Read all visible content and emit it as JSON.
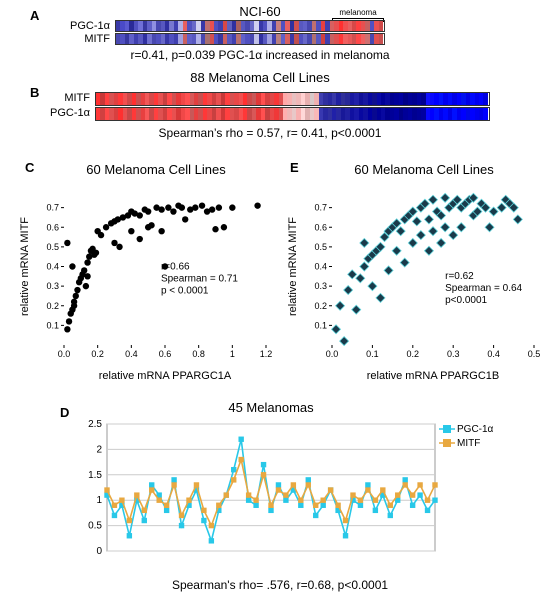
{
  "panelA": {
    "label": "A",
    "title": "NCI-60",
    "bracket_label": "melanoma",
    "rows": [
      {
        "name": "PGC-1α",
        "cells": [
          "#3a3aa8",
          "#4a4ac8",
          "#5a5ad0",
          "#2a2a98",
          "#5050c0",
          "#7070d8",
          "#3838a0",
          "#6060c8",
          "#9090e0",
          "#4848b0",
          "#5858c0",
          "#3030a0",
          "#7878d0",
          "#4040b0",
          "#b0b0e8",
          "#e86060",
          "#5050c0",
          "#6868c8",
          "#d0d0f0",
          "#3838a8",
          "#c07070",
          "#e85050",
          "#5050c0",
          "#4040b0",
          "#d84848",
          "#6060c0",
          "#3030a0",
          "#a86060",
          "#5858c0",
          "#4848b0",
          "#6868c8",
          "#d0d0f0",
          "#3838a8",
          "#5050c0",
          "#b0b0e8",
          "#4040b0",
          "#c88080",
          "#5050c0",
          "#e86060",
          "#3030a0",
          "#d05050",
          "#5858c0",
          "#6060c8",
          "#4848b0",
          "#c07070",
          "#5050c0",
          "#e84040",
          "#4040b0",
          "#d86060",
          "#e85050",
          "#ff3030",
          "#f05050",
          "#e86060",
          "#d84848",
          "#ff4040",
          "#e85050",
          "#c86060",
          "#5050c0",
          "#e85050",
          "#d04848"
        ]
      },
      {
        "name": "MITF",
        "cells": [
          "#4848b0",
          "#5050c0",
          "#3838a0",
          "#6060c8",
          "#4040b0",
          "#5858c0",
          "#3030a0",
          "#7070d0",
          "#4848b0",
          "#5050c0",
          "#6868c8",
          "#3838a8",
          "#5050c0",
          "#4040b0",
          "#a0a0e0",
          "#c86060",
          "#6060c8",
          "#5858c0",
          "#b0b0e8",
          "#4848b0",
          "#a87070",
          "#d05050",
          "#5050c0",
          "#3838a0",
          "#c86060",
          "#5858c0",
          "#4040b0",
          "#b87070",
          "#6060c8",
          "#5050c0",
          "#4848b0",
          "#c0c0e8",
          "#3030a0",
          "#5858c0",
          "#a0a0e0",
          "#4040b0",
          "#b88080",
          "#6060c8",
          "#d86060",
          "#3838a8",
          "#c05050",
          "#5050c0",
          "#6868c8",
          "#4848b0",
          "#b07070",
          "#5858c0",
          "#d04040",
          "#4040b0",
          "#c86060",
          "#e05050",
          "#ff3838",
          "#f06060",
          "#e85858",
          "#d05050",
          "#ff4848",
          "#f06060",
          "#d07070",
          "#4848b0",
          "#e05050",
          "#c85050"
        ]
      }
    ],
    "caption": "r=0.41, p=0.039 PGC-1α increased in melanoma"
  },
  "panelB": {
    "label": "B",
    "title": "88 Melanoma Cell Lines",
    "rows": [
      {
        "name": "MITF",
        "cells": [
          "#ff3030",
          "#c83838",
          "#ff4040",
          "#d85050",
          "#e04040",
          "#ff3838",
          "#f05050",
          "#d04848",
          "#ff3030",
          "#c85050",
          "#e84040",
          "#f05858",
          "#d84848",
          "#ff3838",
          "#e85050",
          "#c84040",
          "#ff4848",
          "#d05050",
          "#e83838",
          "#f04848",
          "#ff5050",
          "#d85858",
          "#e04040",
          "#c85050",
          "#ff3838",
          "#f04848",
          "#d04040",
          "#e85050",
          "#c83838",
          "#ff4040",
          "#d85050",
          "#e84848",
          "#f05050",
          "#ff3030",
          "#d04848",
          "#c85858",
          "#e03838",
          "#ff5050",
          "#d84040",
          "#e04848",
          "#f83838",
          "#e05050",
          "#ffa8a8",
          "#f8b0b0",
          "#e8c0c0",
          "#f0b8b8",
          "#ffd0d0",
          "#e8b0b0",
          "#d8c8c8",
          "#f0b0b0",
          "#4040b0",
          "#3030a0",
          "#2828a0",
          "#3838a8",
          "#2020a0",
          "#303098",
          "#282898",
          "#1818a0",
          "#2020a8",
          "#101098",
          "#1818a0",
          "#0808a0",
          "#101090",
          "#0808a8",
          "#000098",
          "#0808a0",
          "#000090",
          "#000098",
          "#0000a0",
          "#000088",
          "#000098",
          "#000090",
          "#0000a0",
          "#000090",
          "#1010ff",
          "#0808ff",
          "#0000ff",
          "#0010ff",
          "#0000f0",
          "#0008ff",
          "#0000e8",
          "#0000ff",
          "#0010f0",
          "#0000e8",
          "#0008ff",
          "#0000f0",
          "#0000ff",
          "#0000e0"
        ]
      },
      {
        "name": "PGC-1α",
        "cells": [
          "#ff3838",
          "#d04040",
          "#ff4848",
          "#e05050",
          "#d84040",
          "#ff3030",
          "#e85050",
          "#c84848",
          "#ff3838",
          "#d05050",
          "#e84040",
          "#f85858",
          "#c84848",
          "#ff4040",
          "#e05050",
          "#d04040",
          "#ff4848",
          "#e85050",
          "#d83838",
          "#f04848",
          "#ff5050",
          "#c85858",
          "#e84040",
          "#d05050",
          "#ff3838",
          "#e84848",
          "#c84040",
          "#f05050",
          "#d03838",
          "#ff4040",
          "#e05050",
          "#d84848",
          "#f85050",
          "#ff3838",
          "#c84848",
          "#d85858",
          "#e83838",
          "#ff5050",
          "#c84040",
          "#e84848",
          "#f03838",
          "#d85050",
          "#ffb0b0",
          "#f0b8b8",
          "#e8c8c8",
          "#f8b0b0",
          "#ffd8d8",
          "#e0b0b0",
          "#e8c8c8",
          "#f8b8b8",
          "#3838b0",
          "#2828a0",
          "#3030a0",
          "#2020a8",
          "#2828a0",
          "#181898",
          "#2020a0",
          "#1010a0",
          "#1818a8",
          "#0808a0",
          "#1010a0",
          "#0000a0",
          "#080890",
          "#000098",
          "#0808a0",
          "#000090",
          "#000098",
          "#0000a0",
          "#000088",
          "#000098",
          "#0000a0",
          "#000090",
          "#000098",
          "#0000a0",
          "#0808ff",
          "#0000ff",
          "#0010ff",
          "#0000f0",
          "#0008ff",
          "#0000e8",
          "#0010ff",
          "#0000f0",
          "#0000ff",
          "#0008e8",
          "#0000ff",
          "#0000f0",
          "#0000e8",
          "#0000ff"
        ]
      }
    ],
    "caption": "Spearman’s rho = 0.57, r= 0.41, p<0.0001"
  },
  "panelC": {
    "label": "C",
    "title": "60 Melanoma Cell Lines",
    "xlabel": "relative mRNA PPARGC1A",
    "ylabel": "relative mRNA MITF",
    "xlim": [
      0,
      1.2
    ],
    "xticks": [
      0,
      0.2,
      0.4,
      0.6,
      0.8,
      1,
      1.2
    ],
    "ylim": [
      0,
      0.8
    ],
    "yticks": [
      0.1,
      0.2,
      0.3,
      0.4,
      0.5,
      0.6,
      0.7
    ],
    "marker": "circle",
    "marker_color": "#000000",
    "marker_size": 3.2,
    "stats": [
      "r=0.66",
      "Spearman = 0.71",
      "p < 0.0001"
    ],
    "points": [
      [
        0.02,
        0.08
      ],
      [
        0.03,
        0.12
      ],
      [
        0.04,
        0.16
      ],
      [
        0.05,
        0.18
      ],
      [
        0.06,
        0.2
      ],
      [
        0.06,
        0.22
      ],
      [
        0.07,
        0.25
      ],
      [
        0.08,
        0.28
      ],
      [
        0.09,
        0.32
      ],
      [
        0.1,
        0.34
      ],
      [
        0.05,
        0.4
      ],
      [
        0.11,
        0.36
      ],
      [
        0.12,
        0.38
      ],
      [
        0.14,
        0.42
      ],
      [
        0.13,
        0.3
      ],
      [
        0.15,
        0.45
      ],
      [
        0.16,
        0.48
      ],
      [
        0.18,
        0.46
      ],
      [
        0.17,
        0.49
      ],
      [
        0.19,
        0.47
      ],
      [
        0.14,
        0.35
      ],
      [
        0.02,
        0.52
      ],
      [
        0.2,
        0.58
      ],
      [
        0.22,
        0.56
      ],
      [
        0.25,
        0.6
      ],
      [
        0.28,
        0.62
      ],
      [
        0.3,
        0.63
      ],
      [
        0.32,
        0.64
      ],
      [
        0.3,
        0.52
      ],
      [
        0.33,
        0.5
      ],
      [
        0.35,
        0.65
      ],
      [
        0.38,
        0.66
      ],
      [
        0.4,
        0.68
      ],
      [
        0.4,
        0.58
      ],
      [
        0.42,
        0.67
      ],
      [
        0.45,
        0.66
      ],
      [
        0.45,
        0.54
      ],
      [
        0.48,
        0.69
      ],
      [
        0.5,
        0.68
      ],
      [
        0.52,
        0.61
      ],
      [
        0.55,
        0.7
      ],
      [
        0.5,
        0.6
      ],
      [
        0.58,
        0.69
      ],
      [
        0.58,
        0.58
      ],
      [
        0.6,
        0.4
      ],
      [
        0.62,
        0.7
      ],
      [
        0.65,
        0.68
      ],
      [
        0.68,
        0.71
      ],
      [
        0.7,
        0.7
      ],
      [
        0.72,
        0.64
      ],
      [
        0.75,
        0.69
      ],
      [
        0.78,
        0.7
      ],
      [
        0.82,
        0.71
      ],
      [
        0.85,
        0.68
      ],
      [
        0.88,
        0.69
      ],
      [
        0.9,
        0.59
      ],
      [
        0.92,
        0.7
      ],
      [
        0.95,
        0.6
      ],
      [
        1.0,
        0.7
      ],
      [
        1.15,
        0.71
      ]
    ]
  },
  "panelE": {
    "label": "E",
    "title": "60 Melanoma Cell Lines",
    "xlabel": "relative mRNA PPARGC1B",
    "ylabel": "relative mRNA MITF",
    "xlim": [
      0,
      0.5
    ],
    "xticks": [
      0,
      0.1,
      0.2,
      0.3,
      0.4,
      0.5
    ],
    "ylim": [
      0,
      0.8
    ],
    "yticks": [
      0.1,
      0.2,
      0.3,
      0.4,
      0.5,
      0.6,
      0.7
    ],
    "marker": "diamond",
    "marker_fill": "#1a3a4a",
    "marker_stroke": "#5dd0d8",
    "marker_size": 4.5,
    "stats": [
      "r=0.62",
      "Spearman = 0.64",
      "p<0.0001"
    ],
    "points": [
      [
        0.01,
        0.08
      ],
      [
        0.02,
        0.2
      ],
      [
        0.03,
        0.02
      ],
      [
        0.04,
        0.28
      ],
      [
        0.05,
        0.36
      ],
      [
        0.06,
        0.18
      ],
      [
        0.07,
        0.34
      ],
      [
        0.08,
        0.4
      ],
      [
        0.09,
        0.44
      ],
      [
        0.08,
        0.52
      ],
      [
        0.1,
        0.46
      ],
      [
        0.1,
        0.3
      ],
      [
        0.11,
        0.48
      ],
      [
        0.12,
        0.5
      ],
      [
        0.12,
        0.24
      ],
      [
        0.13,
        0.55
      ],
      [
        0.14,
        0.58
      ],
      [
        0.14,
        0.38
      ],
      [
        0.15,
        0.6
      ],
      [
        0.16,
        0.62
      ],
      [
        0.16,
        0.48
      ],
      [
        0.17,
        0.58
      ],
      [
        0.18,
        0.64
      ],
      [
        0.18,
        0.42
      ],
      [
        0.19,
        0.66
      ],
      [
        0.2,
        0.68
      ],
      [
        0.2,
        0.52
      ],
      [
        0.21,
        0.63
      ],
      [
        0.22,
        0.7
      ],
      [
        0.22,
        0.56
      ],
      [
        0.23,
        0.72
      ],
      [
        0.24,
        0.64
      ],
      [
        0.24,
        0.48
      ],
      [
        0.25,
        0.74
      ],
      [
        0.25,
        0.58
      ],
      [
        0.26,
        0.68
      ],
      [
        0.27,
        0.66
      ],
      [
        0.27,
        0.52
      ],
      [
        0.28,
        0.75
      ],
      [
        0.28,
        0.6
      ],
      [
        0.29,
        0.7
      ],
      [
        0.3,
        0.72
      ],
      [
        0.3,
        0.56
      ],
      [
        0.31,
        0.74
      ],
      [
        0.32,
        0.7
      ],
      [
        0.32,
        0.6
      ],
      [
        0.33,
        0.72
      ],
      [
        0.34,
        0.74
      ],
      [
        0.35,
        0.75
      ],
      [
        0.35,
        0.66
      ],
      [
        0.36,
        0.68
      ],
      [
        0.37,
        0.72
      ],
      [
        0.38,
        0.7
      ],
      [
        0.39,
        0.6
      ],
      [
        0.4,
        0.68
      ],
      [
        0.42,
        0.7
      ],
      [
        0.43,
        0.74
      ],
      [
        0.44,
        0.72
      ],
      [
        0.45,
        0.7
      ],
      [
        0.46,
        0.64
      ]
    ]
  },
  "panelD": {
    "label": "D",
    "title": "45 Melanomas",
    "xlim": [
      1,
      45
    ],
    "ylim": [
      0,
      2.5
    ],
    "yticks": [
      0,
      0.5,
      1,
      1.5,
      2,
      2.5
    ],
    "grid_color": "#cccccc",
    "legend": [
      {
        "label": "PGC-1α",
        "color": "#28c8e8",
        "marker": "square"
      },
      {
        "label": "MITF",
        "color": "#e8a840",
        "marker": "square"
      }
    ],
    "series": {
      "PGC1a": {
        "color": "#28c8e8",
        "values": [
          1.1,
          0.7,
          0.9,
          0.3,
          1.0,
          0.6,
          1.3,
          1.1,
          0.8,
          1.4,
          0.5,
          0.9,
          1.2,
          0.6,
          0.2,
          0.8,
          1.1,
          1.6,
          2.2,
          1.0,
          0.9,
          1.7,
          0.8,
          1.3,
          1.0,
          1.2,
          0.9,
          1.4,
          0.7,
          0.9,
          1.2,
          0.8,
          0.3,
          1.0,
          0.9,
          1.3,
          0.8,
          1.1,
          0.7,
          1.0,
          1.4,
          0.9,
          1.1,
          0.8,
          1.0
        ]
      },
      "MITF": {
        "color": "#e8a840",
        "values": [
          1.2,
          0.9,
          1.0,
          0.6,
          1.1,
          0.8,
          1.2,
          1.0,
          0.9,
          1.3,
          0.7,
          1.0,
          1.3,
          0.8,
          0.5,
          0.9,
          1.1,
          1.4,
          1.8,
          1.1,
          1.0,
          1.5,
          0.9,
          1.2,
          1.1,
          1.3,
          1.0,
          1.3,
          0.9,
          1.0,
          1.2,
          0.9,
          0.6,
          1.1,
          1.0,
          1.2,
          1.0,
          1.2,
          0.9,
          1.1,
          1.3,
          1.1,
          1.3,
          1.0,
          1.3
        ]
      }
    },
    "caption": "Spearman's rho= .576, r=0.68, p<0.0001"
  }
}
